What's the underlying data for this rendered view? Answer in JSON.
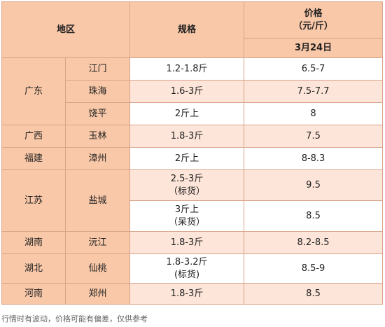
{
  "header": {
    "region": "地区",
    "spec": "规格",
    "price_line1": "价格",
    "price_line2": "（元/斤）",
    "date": "3月24日"
  },
  "rows": [
    {
      "region": "广东",
      "city": "江门",
      "spec": "1.2-1.8斤",
      "price": "6.5-7"
    },
    {
      "city": "珠海",
      "spec": "1.6-3斤",
      "price": "7.5-7.7"
    },
    {
      "city": "饶平",
      "spec": "2斤上",
      "price": "8"
    },
    {
      "region": "广西",
      "city": "玉林",
      "spec": "1.8-3斤",
      "price": "7.5"
    },
    {
      "region": "福建",
      "city": "漳州",
      "spec": "2斤上",
      "price": "8-8.3"
    },
    {
      "region": "江苏",
      "city": "盐城",
      "spec": "2.5-3斤",
      "spec2": "（标货）",
      "price": "9.5"
    },
    {
      "spec": "3斤上",
      "spec2": "（呆货）",
      "price": "8.5"
    },
    {
      "region": "湖南",
      "city": "沅江",
      "spec": "1.8-3斤",
      "price": "8.2-8.5"
    },
    {
      "region": "湖北",
      "city": "仙桃",
      "spec": "1.8-3.2斤",
      "spec2": "(标货)",
      "price": "8.5-9"
    },
    {
      "region": "河南",
      "city": "郑州",
      "spec": "1.8-3斤",
      "price": "8.5"
    }
  ],
  "footnote": "行情时有波动，价格可能有偏差，仅供参考"
}
